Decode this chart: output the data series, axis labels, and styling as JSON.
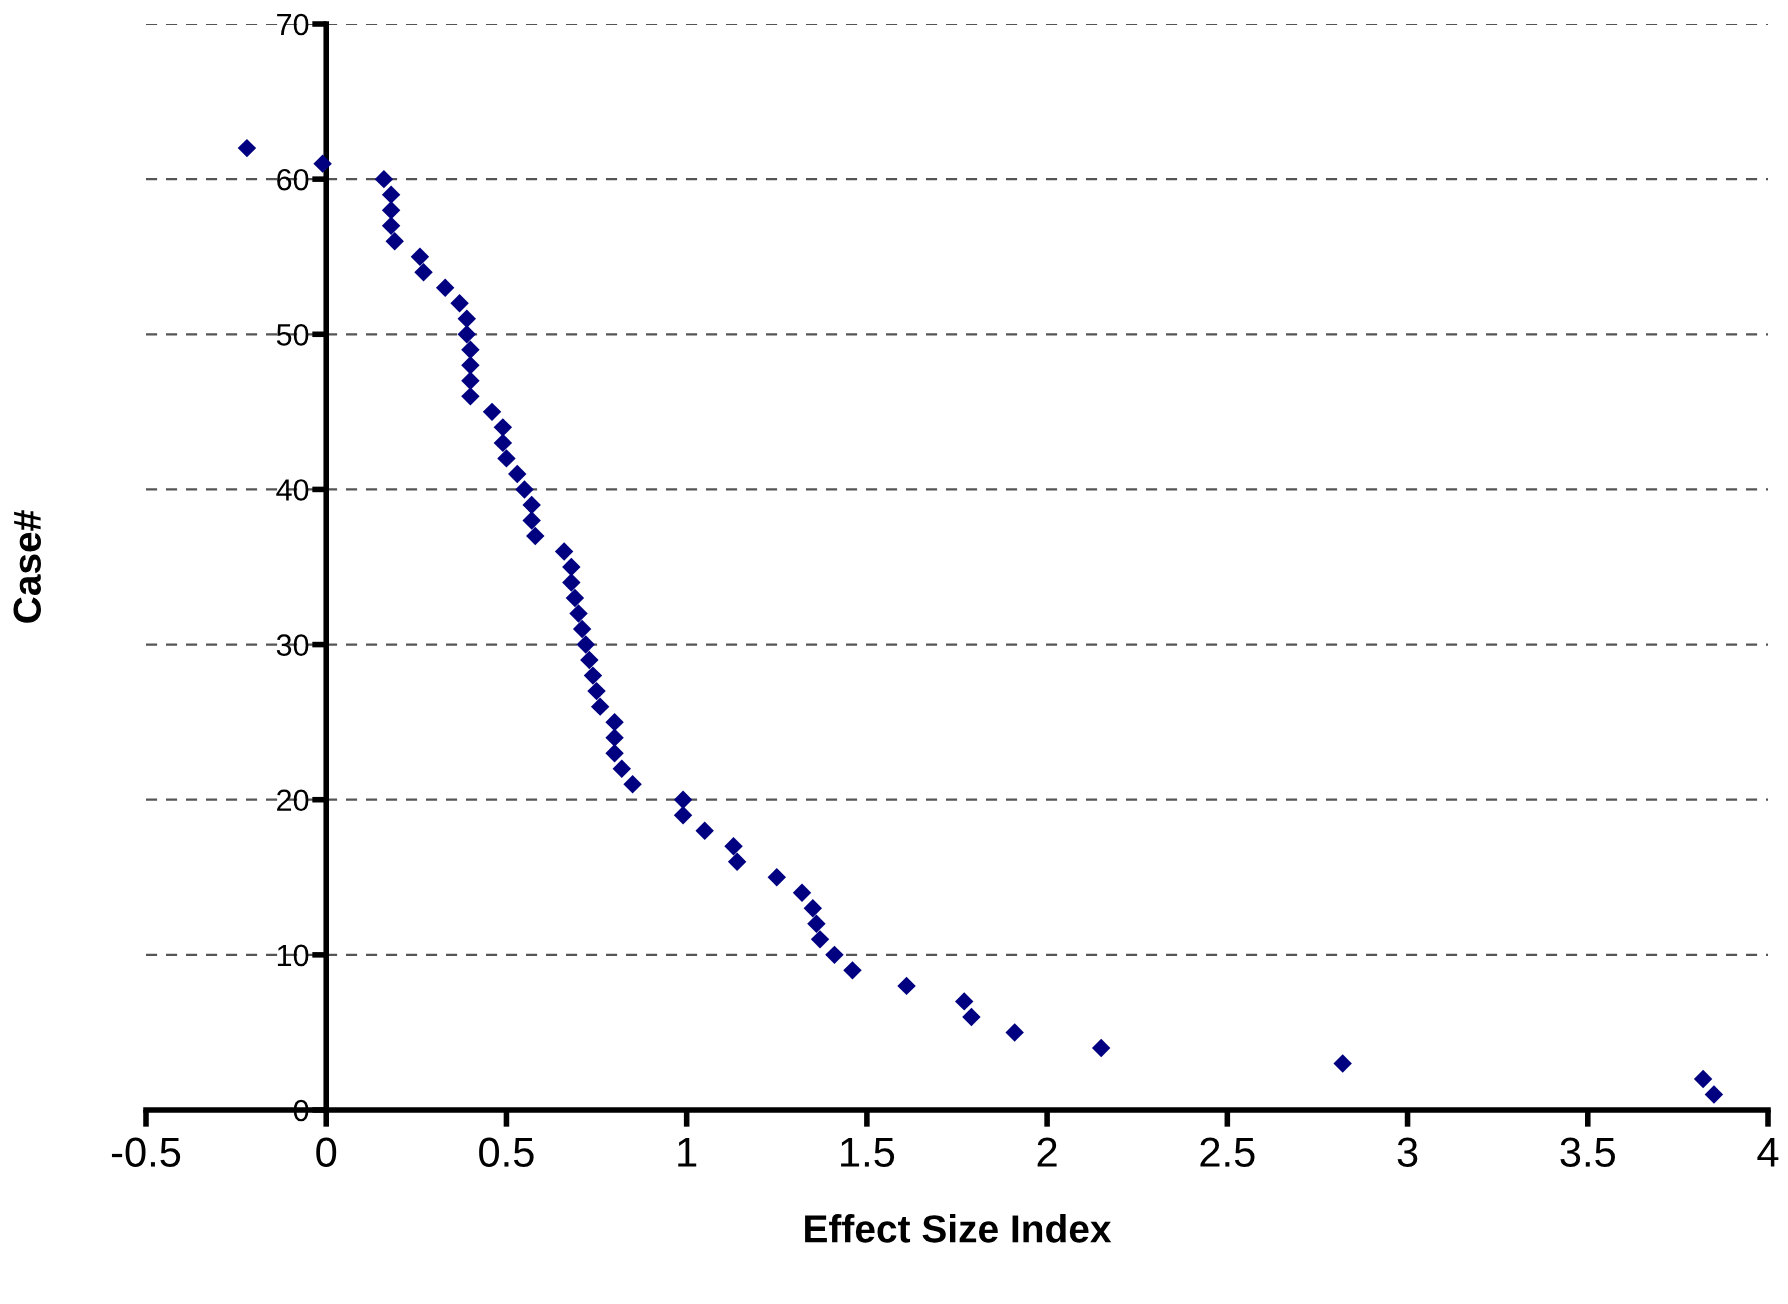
{
  "chart_data": {
    "type": "scatter",
    "xlabel": "Effect Size Index",
    "ylabel": "Case#",
    "x": [
      3.85,
      3.82,
      2.82,
      2.15,
      1.91,
      1.79,
      1.77,
      1.61,
      1.46,
      1.41,
      1.37,
      1.36,
      1.35,
      1.32,
      1.25,
      1.14,
      1.13,
      1.05,
      0.99,
      0.99,
      0.85,
      0.82,
      0.8,
      0.8,
      0.8,
      0.76,
      0.75,
      0.74,
      0.73,
      0.72,
      0.71,
      0.7,
      0.69,
      0.68,
      0.68,
      0.66,
      0.58,
      0.57,
      0.57,
      0.55,
      0.53,
      0.5,
      0.49,
      0.49,
      0.46,
      0.4,
      0.4,
      0.4,
      0.4,
      0.39,
      0.39,
      0.37,
      0.33,
      0.27,
      0.26,
      0.19,
      0.18,
      0.18,
      0.18,
      0.16,
      -0.01,
      -0.22
    ],
    "values": [
      1,
      2,
      3,
      4,
      5,
      6,
      7,
      8,
      9,
      10,
      11,
      12,
      13,
      14,
      15,
      16,
      17,
      18,
      19,
      20,
      21,
      22,
      23,
      24,
      25,
      26,
      27,
      28,
      29,
      30,
      31,
      32,
      33,
      34,
      35,
      36,
      37,
      38,
      39,
      40,
      41,
      42,
      43,
      44,
      45,
      46,
      47,
      48,
      49,
      50,
      51,
      52,
      53,
      54,
      55,
      56,
      57,
      58,
      59,
      60,
      61,
      62
    ],
    "color": "#000080",
    "marker": "diamond",
    "xlim": [
      -0.5,
      4
    ],
    "xticks": [
      -0.5,
      0,
      0.5,
      1,
      1.5,
      2,
      2.5,
      3,
      3.5,
      4
    ],
    "ylim": [
      0,
      70
    ],
    "yticks": [
      0,
      10,
      20,
      30,
      40,
      50,
      60,
      70
    ],
    "grid": "y",
    "line_style": "dashed"
  }
}
